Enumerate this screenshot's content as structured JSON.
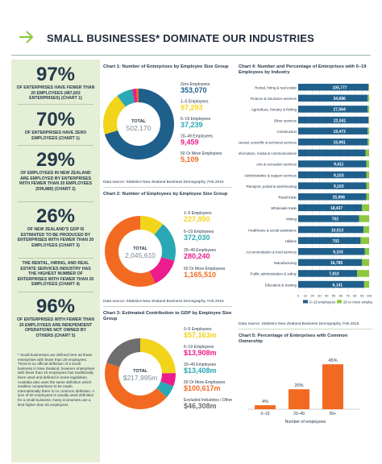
{
  "header": {
    "title": "SMALL BUSINESSES* DOMINATE OUR INDUSTRIES",
    "arrow_icon": "arrow-right-icon"
  },
  "stats": [
    {
      "big": "97%",
      "desc": "OF ENTERPRISES HAVE FEWER THAN 20 EMPLOYEES (487,602 ENTERPRISES) (CHART 1)"
    },
    {
      "big": "70%",
      "desc": "OF ENTERPRISES HAVE ZERO EMPLOYEES (CHART 1)"
    },
    {
      "big": "29%",
      "desc": "OF EMPLOYEES IN NEW ZEALAND ARE EMPLOYED BY ENTERPRISES WITH FEWER THAN 20 EMPLOYEES (599,880) (CHART 2)"
    },
    {
      "big": "26%",
      "desc": "OF NEW ZEALAND'S GDP IS ESTIMATED TO BE PRODUCED BY ENTERPRISES WITH FEWER THAN 20 EMPLOYEES (CHART 3)"
    },
    {
      "big": "",
      "desc": "THE RENTAL, HIRING, AND REAL ESTATE SERVICES INDUSTRY HAS THE HIGHEST NUMBER OF ENTERPRISES WITH FEWER THAN 20 EMPLOYEES (CHART 4)"
    },
    {
      "big": "96%",
      "desc": "OF ENTERPRISES WITH FEWER THAN 20 EMPLOYEES ARE INDEPENDENT OPERATIONS NOT OWNED BY OTHERS (CHART 5)"
    }
  ],
  "footnote": "* Small businesses are defined here as those enterprises with fewer than 20 employees. There is no official definition of a small business in New Zealand, however enterprises with fewer than 20 employees has traditionally been used and defined in some legislation. Australia also uses the same definition which enables comparisons to be made. Internationally there is no common definition. A size of 50 employees is usually used definition for a small business; many economies use a limit higher than 20 employees.",
  "chart_data": [
    {
      "id": "chart1",
      "type": "pie",
      "title": "Chart 1: Number of Enterprises by Employee Size Group",
      "total_label": "TOTAL",
      "total_value": "502,170",
      "categories": [
        "Zero Employees",
        "1–5 Employees",
        "6–19 Employees",
        "20–49 Employees",
        "50 Or More Employees"
      ],
      "values": [
        353070,
        97293,
        37239,
        9459,
        5109
      ],
      "value_labels": [
        "353,070",
        "97,293",
        "37,239",
        "9,459",
        "5,109"
      ],
      "colors": [
        "#1f5f8b",
        "#f2d41a",
        "#2aa8b5",
        "#ec1c8c",
        "#f26a21"
      ],
      "source": "Data source: Statistics New Zealand Business Demography, Feb 2015"
    },
    {
      "id": "chart2",
      "type": "pie",
      "title": "Chart 2: Number of Employees by Employee Size Group",
      "total_label": "TOTAL",
      "total_value": "2,045,610",
      "categories": [
        "1–5 Employees",
        "6–19 Employees",
        "20–49 Employees",
        "50 Or More Employees"
      ],
      "values": [
        227850,
        372030,
        280240,
        1165510
      ],
      "value_labels": [
        "227,850",
        "372,030",
        "280,240",
        "1,165,510"
      ],
      "colors": [
        "#f2d41a",
        "#2aa8b5",
        "#ec1c8c",
        "#f26a21"
      ],
      "source": "Data source: Statistics New Zealand Business Demography, Feb 2015"
    },
    {
      "id": "chart3",
      "type": "pie",
      "title": "Chart 3: Estimated Contribution to GDP by Employee Size Group",
      "total_label": "TOTAL",
      "total_value": "$217,995m",
      "categories": [
        "0–5 Employees",
        "6–19 Employees",
        "20–49 Employees",
        "50 Or More Employees",
        "Excluded Industries / Other Entities"
      ],
      "values": [
        57163,
        13908,
        13408,
        100617,
        46308
      ],
      "value_labels": [
        "$57,163m",
        "$13,908m",
        "$13,408m",
        "$100,617m",
        "$46,308m"
      ],
      "colors": [
        "#f2d41a",
        "#ec1c8c",
        "#2aa8b5",
        "#f26a21",
        "#6e6e6e"
      ],
      "source": ""
    },
    {
      "id": "chart4",
      "type": "bar",
      "title": "Chart 4: Number and Percentage of Enterprises with 0–19 Employees by Industry",
      "categories": [
        "Rental, hiring & real estate",
        "Finance & insurance services",
        "Agriculture, forestry & fishing",
        "Other services",
        "Construction",
        "Professional, scientific & technical services",
        "Information, media & communications",
        "Arts & recreation services",
        "Administrative & support services",
        "Transport, postal & warehousing",
        "Retail trade",
        "Wholesale trade",
        "Mining",
        "Healthcare & social assistance",
        "Utilities",
        "Accommodation & food services",
        "Manufacturing",
        "Public administration & safety",
        "Education & training"
      ],
      "values": [
        105777,
        34686,
        27064,
        22041,
        19473,
        15991,
        9411,
        9411,
        9103,
        9103,
        25998,
        18437,
        702,
        10013,
        702,
        9103,
        16785,
        7810,
        6141
      ],
      "value_labels": [
        "105,777",
        "34,686",
        "27,064",
        "22,041",
        "19,473",
        "15,991",
        "",
        "9,411",
        "9,103",
        "9,103",
        "25,998",
        "18,437",
        "702",
        "10,013",
        "702",
        "9,103",
        "16,785",
        "7,810",
        "6,141"
      ],
      "pct_0_19": [
        99,
        98,
        98,
        99,
        98,
        98,
        95,
        96,
        96,
        96,
        96,
        90,
        86,
        92,
        88,
        94,
        90,
        83,
        93
      ],
      "colors": {
        "small": "#1f5f8b",
        "large": "#8dc63f"
      },
      "legend": [
        "0–19 employees",
        "20 or more employees"
      ],
      "xlim": [
        0,
        100
      ],
      "xticks": [
        "0",
        "10",
        "20",
        "30",
        "40",
        "50",
        "60",
        "70",
        "80",
        "90",
        "100"
      ],
      "source": "Data source: Statistics New Zealand Business Demography, Feb 2015"
    },
    {
      "id": "chart5",
      "type": "bar",
      "title": "Chart 5: Percentage of Enterprises with Common Ownership",
      "categories": [
        "0–19",
        "20–49",
        "50+"
      ],
      "values": [
        4,
        20,
        45
      ],
      "value_labels": [
        "4%",
        "20%",
        "45%"
      ],
      "color": "#f26a21",
      "xlabel": "Number of employees",
      "ylim": [
        0,
        50
      ]
    }
  ]
}
